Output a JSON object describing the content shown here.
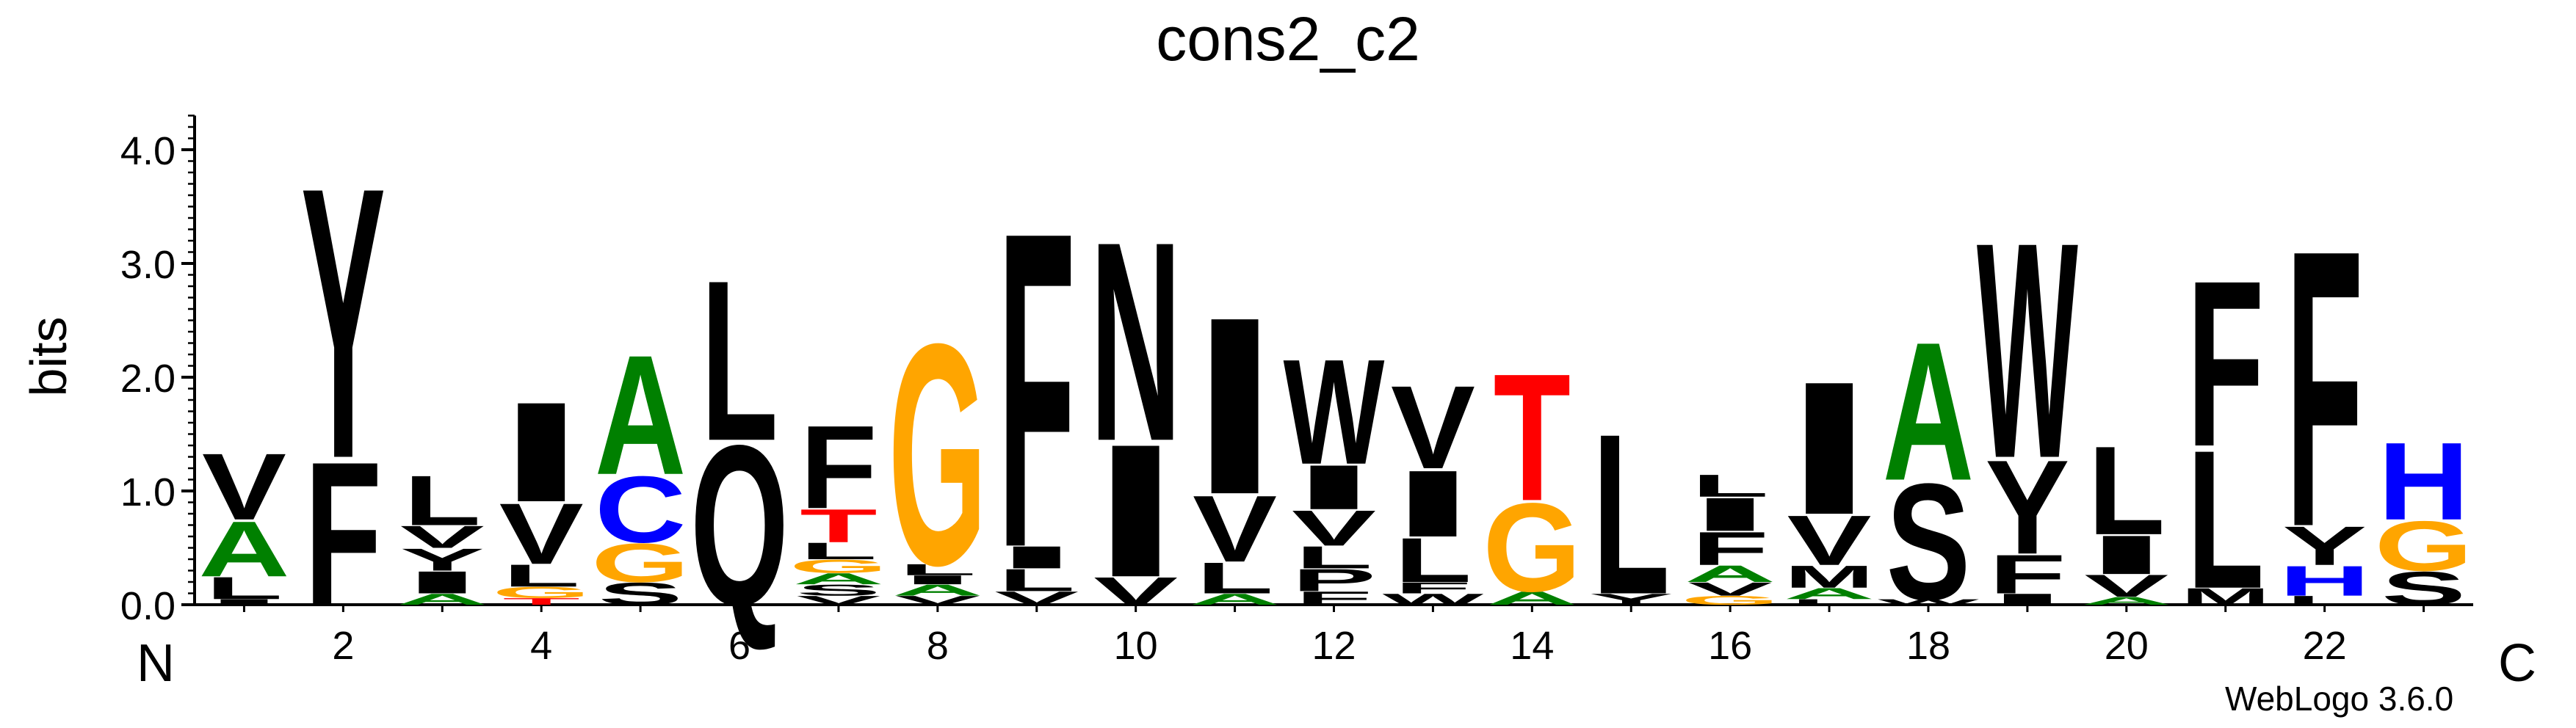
{
  "chart_data": {
    "type": "sequence-logo",
    "title": "cons2_c2",
    "ylabel": "bits",
    "ylim": [
      0,
      4.3
    ],
    "yticks": [
      {
        "value": 0.0,
        "label": "0.0"
      },
      {
        "value": 1.0,
        "label": "1.0"
      },
      {
        "value": 2.0,
        "label": "2.0"
      },
      {
        "value": 3.0,
        "label": "3.0"
      },
      {
        "value": 4.0,
        "label": "4.0"
      }
    ],
    "xticks": [
      {
        "position": 2,
        "label": "2"
      },
      {
        "position": 4,
        "label": "4"
      },
      {
        "position": 6,
        "label": "6"
      },
      {
        "position": 8,
        "label": "8"
      },
      {
        "position": 10,
        "label": "10"
      },
      {
        "position": 12,
        "label": "12"
      },
      {
        "position": 14,
        "label": "14"
      },
      {
        "position": 16,
        "label": "16"
      },
      {
        "position": 18,
        "label": "18"
      },
      {
        "position": 20,
        "label": "20"
      },
      {
        "position": 22,
        "label": "22"
      }
    ],
    "n_terminus_label": "N",
    "c_terminus_label": "C",
    "credit": "WebLogo 3.6.0",
    "colors": {
      "hydrophobic": "#000000",
      "polar": "#008000",
      "basic": "#0000ff",
      "acidic": "#ff0000",
      "special": "#ffa500"
    },
    "positions": [
      {
        "pos": 1,
        "letters": [
          {
            "aa": "I",
            "bits": 0.05
          },
          {
            "aa": "L",
            "bits": 0.2
          },
          {
            "aa": "A",
            "bits": 0.5
          },
          {
            "aa": "V",
            "bits": 0.6
          }
        ]
      },
      {
        "pos": 2,
        "letters": [
          {
            "aa": "F",
            "bits": 1.3
          },
          {
            "aa": "Y",
            "bits": 2.45
          }
        ]
      },
      {
        "pos": 3,
        "letters": [
          {
            "aa": "A",
            "bits": 0.1
          },
          {
            "aa": "I",
            "bits": 0.2
          },
          {
            "aa": "Y",
            "bits": 0.2
          },
          {
            "aa": "V",
            "bits": 0.2
          },
          {
            "aa": "L",
            "bits": 0.45
          }
        ]
      },
      {
        "pos": 4,
        "letters": [
          {
            "aa": "T",
            "bits": 0.06
          },
          {
            "aa": "G",
            "bits": 0.1
          },
          {
            "aa": "L",
            "bits": 0.2
          },
          {
            "aa": "V",
            "bits": 0.55
          },
          {
            "aa": "I",
            "bits": 0.9
          }
        ]
      },
      {
        "pos": 5,
        "letters": [
          {
            "aa": "S",
            "bits": 0.2
          },
          {
            "aa": "G",
            "bits": 0.35
          },
          {
            "aa": "C",
            "bits": 0.6
          },
          {
            "aa": "A",
            "bits": 1.08
          }
        ]
      },
      {
        "pos": 6,
        "letters": [
          {
            "aa": "Q",
            "bits": 1.45
          },
          {
            "aa": "L",
            "bits": 1.45
          }
        ]
      },
      {
        "pos": 7,
        "letters": [
          {
            "aa": "V",
            "bits": 0.08
          },
          {
            "aa": "S",
            "bits": 0.1
          },
          {
            "aa": "A",
            "bits": 0.1
          },
          {
            "aa": "G",
            "bits": 0.12
          },
          {
            "aa": "L",
            "bits": 0.15
          },
          {
            "aa": "T",
            "bits": 0.3
          },
          {
            "aa": "F",
            "bits": 0.75
          }
        ]
      },
      {
        "pos": 8,
        "letters": [
          {
            "aa": "V",
            "bits": 0.08
          },
          {
            "aa": "A",
            "bits": 0.1
          },
          {
            "aa": "I",
            "bits": 0.08
          },
          {
            "aa": "L",
            "bits": 0.1
          },
          {
            "aa": "G",
            "bits": 2.0
          }
        ]
      },
      {
        "pos": 9,
        "letters": [
          {
            "aa": "V",
            "bits": 0.12
          },
          {
            "aa": "L",
            "bits": 0.2
          },
          {
            "aa": "I",
            "bits": 0.2
          },
          {
            "aa": "F",
            "bits": 2.85
          }
        ]
      },
      {
        "pos": 10,
        "letters": [
          {
            "aa": "V",
            "bits": 0.25
          },
          {
            "aa": "I",
            "bits": 1.2
          },
          {
            "aa": "N",
            "bits": 1.8
          }
        ]
      },
      {
        "pos": 11,
        "letters": [
          {
            "aa": "A",
            "bits": 0.1
          },
          {
            "aa": "L",
            "bits": 0.28
          },
          {
            "aa": "V",
            "bits": 0.6
          },
          {
            "aa": "I",
            "bits": 1.6
          }
        ]
      },
      {
        "pos": 12,
        "letters": [
          {
            "aa": "F",
            "bits": 0.12
          },
          {
            "aa": "P",
            "bits": 0.2
          },
          {
            "aa": "L",
            "bits": 0.2
          },
          {
            "aa": "V",
            "bits": 0.32
          },
          {
            "aa": "I",
            "bits": 0.4
          },
          {
            "aa": "W",
            "bits": 0.95
          }
        ]
      },
      {
        "pos": 13,
        "letters": [
          {
            "aa": "W",
            "bits": 0.1
          },
          {
            "aa": "F",
            "bits": 0.1
          },
          {
            "aa": "L",
            "bits": 0.4
          },
          {
            "aa": "I",
            "bits": 0.6
          },
          {
            "aa": "V",
            "bits": 0.75
          }
        ]
      },
      {
        "pos": 14,
        "letters": [
          {
            "aa": "A",
            "bits": 0.12
          },
          {
            "aa": "G",
            "bits": 0.8
          },
          {
            "aa": "T",
            "bits": 1.15
          }
        ]
      },
      {
        "pos": 15,
        "letters": [
          {
            "aa": "Y",
            "bits": 0.1
          },
          {
            "aa": "L",
            "bits": 1.45
          }
        ]
      },
      {
        "pos": 16,
        "letters": [
          {
            "aa": "G",
            "bits": 0.08
          },
          {
            "aa": "V",
            "bits": 0.12
          },
          {
            "aa": "A",
            "bits": 0.15
          },
          {
            "aa": "F",
            "bits": 0.3
          },
          {
            "aa": "I",
            "bits": 0.3
          },
          {
            "aa": "L",
            "bits": 0.2
          }
        ]
      },
      {
        "pos": 17,
        "letters": [
          {
            "aa": "L",
            "bits": 0.05
          },
          {
            "aa": "A",
            "bits": 0.1
          },
          {
            "aa": "M",
            "bits": 0.2
          },
          {
            "aa": "V",
            "bits": 0.45
          },
          {
            "aa": "I",
            "bits": 1.2
          }
        ]
      },
      {
        "pos": 18,
        "letters": [
          {
            "aa": "W",
            "bits": 0.05
          },
          {
            "aa": "S",
            "bits": 1.05
          },
          {
            "aa": "A",
            "bits": 1.25
          }
        ]
      },
      {
        "pos": 19,
        "letters": [
          {
            "aa": "I",
            "bits": 0.1
          },
          {
            "aa": "F",
            "bits": 0.35
          },
          {
            "aa": "Y",
            "bits": 0.85
          },
          {
            "aa": "W",
            "bits": 1.95
          }
        ]
      },
      {
        "pos": 20,
        "letters": [
          {
            "aa": "A",
            "bits": 0.07
          },
          {
            "aa": "V",
            "bits": 0.2
          },
          {
            "aa": "I",
            "bits": 0.35
          },
          {
            "aa": "L",
            "bits": 0.8
          }
        ]
      },
      {
        "pos": 21,
        "letters": [
          {
            "aa": "M",
            "bits": 0.15
          },
          {
            "aa": "L",
            "bits": 1.25
          },
          {
            "aa": "F",
            "bits": 1.5
          }
        ]
      },
      {
        "pos": 22,
        "letters": [
          {
            "aa": "L",
            "bits": 0.08
          },
          {
            "aa": "H",
            "bits": 0.27
          },
          {
            "aa": "Y",
            "bits": 0.35
          },
          {
            "aa": "F",
            "bits": 2.5
          }
        ]
      },
      {
        "pos": 23,
        "letters": [
          {
            "aa": "S",
            "bits": 0.3
          },
          {
            "aa": "G",
            "bits": 0.45
          },
          {
            "aa": "H",
            "bits": 0.7
          }
        ]
      }
    ]
  }
}
